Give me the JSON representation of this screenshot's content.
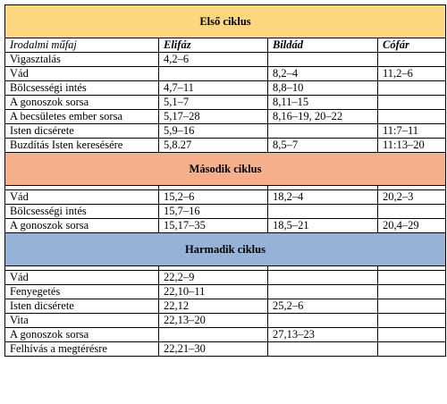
{
  "colors": {
    "section1_bg": "#FDD77F",
    "section2_bg": "#F5B08B",
    "section3_bg": "#95B3D7",
    "border": "#000000"
  },
  "columns": {
    "genre": "Irodalmi műfaj",
    "eliphaz": "Elifáz",
    "bildad": "Bildád",
    "zophar": "Cófár"
  },
  "sections": [
    {
      "title": "Első ciklus",
      "rows": [
        [
          "Vigasztalás",
          "4,2–6",
          "",
          ""
        ],
        [
          "Vád",
          "",
          "8,2–4",
          "11,2–6"
        ],
        [
          "Bölcsességi intés",
          "4,7–11",
          "8,8–10",
          ""
        ],
        [
          "A gonoszok sorsa",
          "5,1–7",
          "8,11–15",
          ""
        ],
        [
          "A becsületes ember sorsa",
          "5,17–28",
          "8,16–19, 20–22",
          ""
        ],
        [
          "Isten dicsérete",
          "5,9–16",
          "",
          "11:7–11"
        ],
        [
          "Buzdítás Isten keresésére",
          "5,8.27",
          "8,5–7",
          "11:13–20"
        ]
      ]
    },
    {
      "title": "Második ciklus",
      "rows": [
        [
          "Vád",
          "15,2–6",
          "18,2–4",
          "20,2–3"
        ],
        [
          "Bölcsességi intés",
          "15,7–16",
          "",
          ""
        ],
        [
          "A gonoszok sorsa",
          "15,17–35",
          "18,5–21",
          "20,4–29"
        ]
      ]
    },
    {
      "title": "Harmadik ciklus",
      "rows": [
        [
          "Vád",
          "22,2–9",
          "",
          ""
        ],
        [
          "Fenyegetés",
          "22,10–11",
          "",
          ""
        ],
        [
          "Isten dicsérete",
          "22,12",
          "25,2–6",
          ""
        ],
        [
          "Vita",
          "22,13–20",
          "",
          ""
        ],
        [
          "A gonoszok sorsa",
          "",
          "27,13–23",
          ""
        ],
        [
          "Felhívás a megtérésre",
          "22,21–30",
          "",
          ""
        ]
      ]
    }
  ]
}
